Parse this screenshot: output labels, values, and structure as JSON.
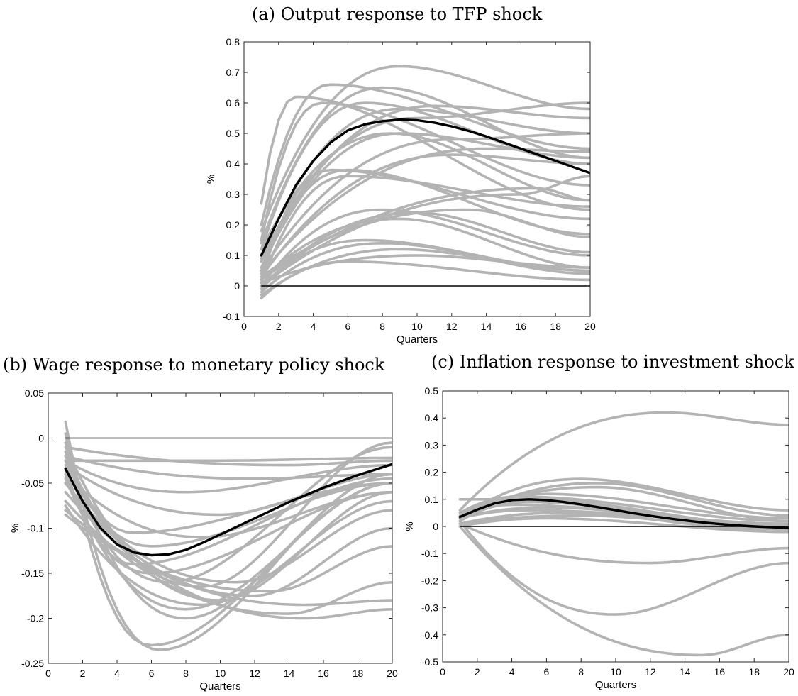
{
  "titles": {
    "a": "(a) Output response to TFP shock",
    "b": "(b) Wage response to monetary policy shock",
    "c": "(c) Inflation response to investment shock"
  },
  "chart_data": [
    {
      "id": "a",
      "type": "line",
      "title": "(a) Output response to TFP shock",
      "xlabel": "Quarters",
      "ylabel": "%",
      "xlim": [
        0,
        20
      ],
      "ylim": [
        -0.1,
        0.8
      ],
      "xticks": [
        "0",
        "2",
        "4",
        "6",
        "8",
        "10",
        "12",
        "14",
        "16",
        "18",
        "20"
      ],
      "yticks": [
        "-0.1",
        "0",
        "0.1",
        "0.2",
        "0.3",
        "0.4",
        "0.5",
        "0.6",
        "0.7",
        "0.8"
      ],
      "grid": false,
      "colors": {
        "gray": "#b3b3b3",
        "mean": "#000000",
        "zero": "#000000"
      },
      "series_params": [
        [
          0.27,
          0.62,
          3.0,
          0.25
        ],
        [
          0.2,
          0.66,
          5.0,
          0.45
        ],
        [
          0.18,
          0.72,
          9.0,
          0.58
        ],
        [
          0.14,
          0.65,
          8.0,
          0.42
        ],
        [
          0.12,
          0.6,
          7.0,
          0.4
        ],
        [
          0.1,
          0.58,
          9.0,
          0.5
        ],
        [
          0.09,
          0.55,
          10.0,
          0.6
        ],
        [
          0.08,
          0.59,
          11.0,
          0.55
        ],
        [
          0.06,
          0.5,
          9.0,
          0.42
        ],
        [
          0.05,
          0.48,
          12.0,
          0.5
        ],
        [
          0.04,
          0.45,
          14.0,
          0.44
        ],
        [
          0.03,
          0.43,
          12.0,
          0.4
        ],
        [
          0.02,
          0.38,
          5.0,
          0.22
        ],
        [
          0.01,
          0.36,
          6.0,
          0.26
        ],
        [
          0.15,
          0.6,
          4.5,
          0.33
        ],
        [
          0.12,
          0.5,
          8.5,
          0.28
        ],
        [
          0.0,
          0.25,
          8.0,
          0.1
        ],
        [
          -0.01,
          0.24,
          10.0,
          0.11
        ],
        [
          0.03,
          0.25,
          13.0,
          0.16
        ],
        [
          0.02,
          0.22,
          9.0,
          0.06
        ],
        [
          0.0,
          0.15,
          7.0,
          0.05
        ],
        [
          -0.02,
          0.14,
          8.0,
          0.04
        ],
        [
          -0.03,
          0.12,
          9.0,
          0.05
        ],
        [
          0.01,
          0.1,
          10.0,
          0.06
        ],
        [
          -0.04,
          0.08,
          6.0,
          0.02
        ],
        [
          0.05,
          0.38,
          6.0,
          0.17
        ],
        [
          0.02,
          0.32,
          17.0,
          0.28
        ],
        [
          0.0,
          0.3,
          16.0,
          0.36
        ]
      ],
      "mean": [
        [
          1,
          0.1
        ],
        [
          2,
          0.22
        ],
        [
          3,
          0.33
        ],
        [
          4,
          0.41
        ],
        [
          5,
          0.47
        ],
        [
          6,
          0.51
        ],
        [
          7,
          0.53
        ],
        [
          8,
          0.54
        ],
        [
          9,
          0.545
        ],
        [
          10,
          0.543
        ],
        [
          11,
          0.535
        ],
        [
          12,
          0.523
        ],
        [
          13,
          0.508
        ],
        [
          14,
          0.49
        ],
        [
          15,
          0.47
        ],
        [
          16,
          0.45
        ],
        [
          17,
          0.43
        ],
        [
          18,
          0.41
        ],
        [
          19,
          0.39
        ],
        [
          20,
          0.37
        ]
      ]
    },
    {
      "id": "b",
      "type": "line",
      "title": "(b) Wage response to monetary policy shock",
      "xlabel": "Quarters",
      "ylabel": "%",
      "xlim": [
        0,
        20
      ],
      "ylim": [
        -0.25,
        0.05
      ],
      "xticks": [
        "0",
        "2",
        "4",
        "6",
        "8",
        "10",
        "12",
        "14",
        "16",
        "18",
        "20"
      ],
      "yticks": [
        "-0.25",
        "-0.2",
        "-0.15",
        "-0.1",
        "-0.05",
        "0",
        "0.05"
      ],
      "grid": false,
      "colors": {
        "gray": "#b3b3b3",
        "mean": "#000000",
        "zero": "#000000"
      },
      "series_params": [
        [
          0.018,
          -0.235,
          6.5,
          -0.04
        ],
        [
          0.005,
          -0.23,
          6.0,
          -0.05
        ],
        [
          -0.005,
          -0.2,
          8.0,
          -0.04
        ],
        [
          -0.01,
          -0.18,
          10.0,
          -0.06
        ],
        [
          -0.02,
          -0.165,
          9.0,
          -0.005
        ],
        [
          -0.03,
          -0.16,
          7.0,
          -0.01
        ],
        [
          -0.04,
          -0.19,
          8.0,
          -0.05
        ],
        [
          -0.05,
          -0.175,
          12.0,
          -0.1
        ],
        [
          -0.06,
          -0.2,
          15.0,
          -0.19
        ],
        [
          -0.07,
          -0.195,
          14.0,
          -0.16
        ],
        [
          -0.08,
          -0.185,
          15.0,
          -0.18
        ],
        [
          -0.085,
          -0.17,
          13.0,
          -0.12
        ],
        [
          -0.045,
          -0.15,
          6.0,
          -0.06
        ],
        [
          -0.035,
          -0.14,
          5.0,
          -0.045
        ],
        [
          -0.025,
          -0.12,
          6.0,
          -0.05
        ],
        [
          -0.015,
          -0.105,
          5.0,
          -0.05
        ],
        [
          -0.03,
          -0.085,
          10.0,
          -0.04
        ],
        [
          -0.025,
          -0.06,
          8.0,
          -0.03
        ],
        [
          -0.02,
          -0.045,
          12.0,
          -0.04
        ],
        [
          -0.025,
          -0.025,
          10.0,
          -0.022
        ],
        [
          -0.01,
          -0.03,
          14.0,
          -0.025
        ],
        [
          -0.04,
          -0.11,
          9.0,
          -0.06
        ],
        [
          -0.05,
          -0.16,
          11.0,
          -0.08
        ],
        [
          -0.075,
          -0.185,
          9.0,
          -0.07
        ]
      ],
      "mean": [
        [
          1,
          -0.034
        ],
        [
          2,
          -0.07
        ],
        [
          3,
          -0.099
        ],
        [
          4,
          -0.118
        ],
        [
          5,
          -0.127
        ],
        [
          6,
          -0.13
        ],
        [
          7,
          -0.129
        ],
        [
          8,
          -0.124
        ],
        [
          9,
          -0.116
        ],
        [
          10,
          -0.107
        ],
        [
          11,
          -0.098
        ],
        [
          12,
          -0.089
        ],
        [
          13,
          -0.08
        ],
        [
          14,
          -0.071
        ],
        [
          15,
          -0.063
        ],
        [
          16,
          -0.055
        ],
        [
          17,
          -0.048
        ],
        [
          18,
          -0.041
        ],
        [
          19,
          -0.035
        ],
        [
          20,
          -0.029
        ]
      ]
    },
    {
      "id": "c",
      "type": "line",
      "title": "(c) Inflation response to investment shock",
      "xlabel": "Quarters",
      "ylabel": "%",
      "xlim": [
        0,
        20
      ],
      "ylim": [
        -0.5,
        0.5
      ],
      "xticks": [
        "0",
        "2",
        "4",
        "6",
        "8",
        "10",
        "12",
        "14",
        "16",
        "18",
        "20"
      ],
      "yticks": [
        "-0.5",
        "-0.4",
        "-0.3",
        "-0.2",
        "-0.1",
        "0",
        "0.1",
        "0.2",
        "0.3",
        "0.4",
        "0.5"
      ],
      "grid": false,
      "colors": {
        "gray": "#b3b3b3",
        "mean": "#000000",
        "zero": "#000000"
      },
      "series_params": [
        [
          0.06,
          0.42,
          13.0,
          0.375
        ],
        [
          0.03,
          0.175,
          8.0,
          0.06
        ],
        [
          0.02,
          0.16,
          9.0,
          0.04
        ],
        [
          0.04,
          0.145,
          9.0,
          0.02
        ],
        [
          0.05,
          0.12,
          6.0,
          0.03
        ],
        [
          0.1,
          0.1,
          4.0,
          0.0
        ],
        [
          0.0,
          -0.475,
          15.0,
          -0.4
        ],
        [
          0.02,
          -0.325,
          10.0,
          -0.135
        ],
        [
          0.01,
          -0.135,
          12.0,
          -0.08
        ],
        [
          0.02,
          0.09,
          5.0,
          -0.01
        ],
        [
          0.03,
          0.07,
          6.0,
          0.0
        ],
        [
          0.01,
          0.05,
          7.0,
          -0.02
        ],
        [
          0.02,
          0.08,
          4.0,
          0.01
        ],
        [
          0.04,
          0.1,
          5.0,
          0.0
        ],
        [
          0.01,
          0.04,
          8.0,
          -0.01
        ],
        [
          0.03,
          0.06,
          5.0,
          0.01
        ],
        [
          0.0,
          0.03,
          6.0,
          -0.02
        ],
        [
          0.05,
          0.11,
          4.5,
          0.02
        ]
      ],
      "mean": [
        [
          1,
          0.035
        ],
        [
          2,
          0.062
        ],
        [
          3,
          0.085
        ],
        [
          4,
          0.097
        ],
        [
          5,
          0.1
        ],
        [
          6,
          0.097
        ],
        [
          7,
          0.09
        ],
        [
          8,
          0.081
        ],
        [
          9,
          0.071
        ],
        [
          10,
          0.06
        ],
        [
          11,
          0.049
        ],
        [
          12,
          0.039
        ],
        [
          13,
          0.03
        ],
        [
          14,
          0.022
        ],
        [
          15,
          0.015
        ],
        [
          16,
          0.009
        ],
        [
          17,
          0.004
        ],
        [
          18,
          0.0
        ],
        [
          19,
          -0.003
        ],
        [
          20,
          -0.005
        ]
      ]
    }
  ]
}
